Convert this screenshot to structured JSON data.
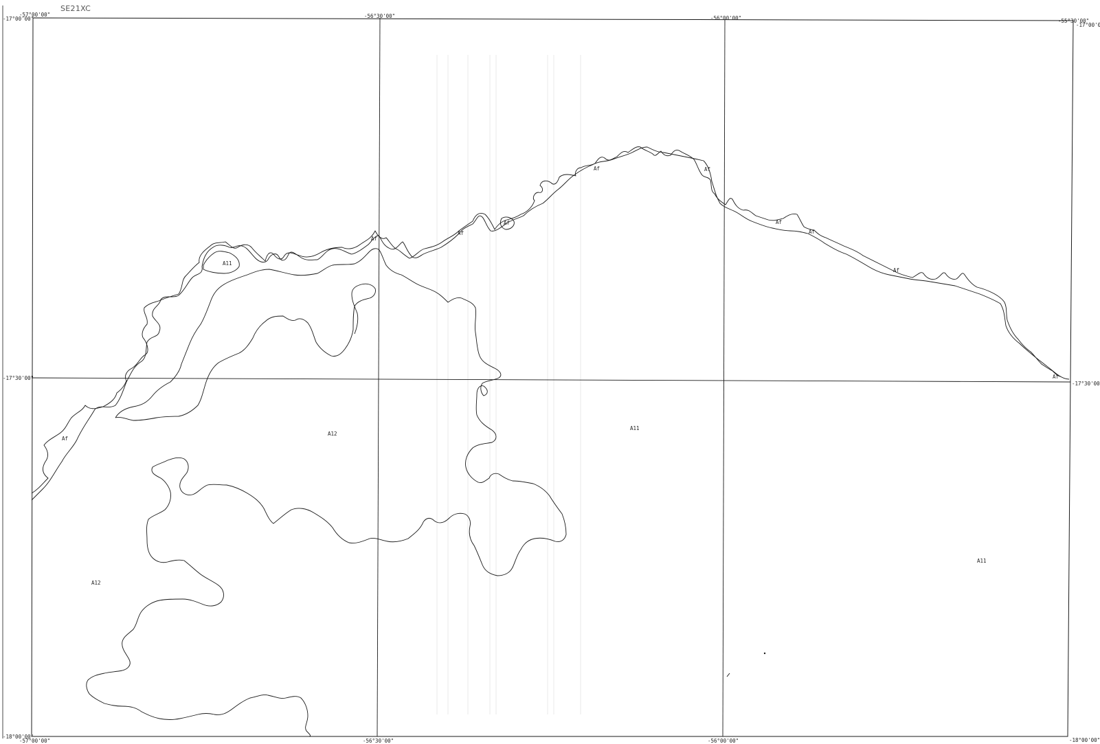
{
  "sheet": {
    "id": "SE21XC"
  },
  "style": {
    "line_color": "#1a1a1a",
    "background": "#ffffff",
    "stripe_color": "#cfcfcf"
  },
  "coords": {
    "top": [
      "-57°00'00\"",
      "-56°30'00\"",
      "-56°00'00\"",
      "-55°30'00\""
    ],
    "bottom": [
      "-57°00'00\"",
      "-56°30'00\"",
      "-56°00'00\""
    ],
    "left": [
      "-17°00'00\"",
      "-17°30'00\"",
      "-18°00'00\""
    ],
    "right": [
      "-17°00'0",
      "-17°30'00",
      "-18°00'00\""
    ]
  },
  "units": {
    "af": "Af",
    "a11": "A11",
    "a12": "A12"
  }
}
